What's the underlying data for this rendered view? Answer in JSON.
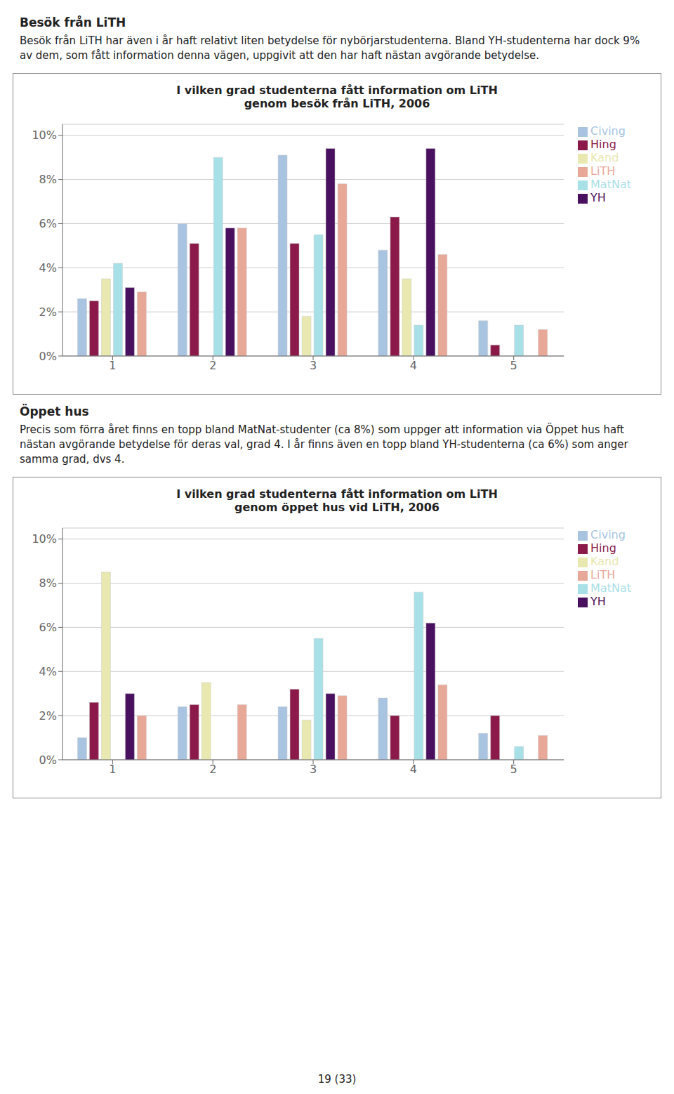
{
  "chart_data": [
    {
      "type": "bar",
      "title": "I vilken grad studenterna fått information om LiTH\ngenom besök från LiTH, 2006",
      "annotations": [
        "Besök från LiTH",
        "Besök från LiTH har även i år haft relativt liten betydelse för nybörjarstudenterna. Bland YH-studenterna har dock 9% av dem, som fått information denna vägen, uppgivit att den har haft nästan avgörande betydelse."
      ],
      "categories": [
        "1",
        "2",
        "3",
        "4",
        "5"
      ],
      "series": [
        {
          "name": "Civing",
          "color": "#a8c4e0",
          "values": [
            2.6,
            6.0,
            9.1,
            4.8,
            1.6
          ]
        },
        {
          "name": "Hing",
          "color": "#8b1a4a",
          "values": [
            2.5,
            5.1,
            5.1,
            6.3,
            0.5
          ]
        },
        {
          "name": "Kand",
          "color": "#e8e8b0",
          "values": [
            3.5,
            0.0,
            1.8,
            3.5,
            0.0
          ]
        },
        {
          "name": "MatNat",
          "color": "#a8e0e8",
          "values": [
            4.2,
            9.0,
            5.5,
            1.4,
            1.4
          ]
        },
        {
          "name": "YH",
          "color": "#4a1060",
          "values": [
            3.1,
            5.8,
            9.4,
            9.4,
            0.0
          ]
        },
        {
          "name": "LiTH",
          "color": "#e8a898",
          "values": [
            2.9,
            5.8,
            7.8,
            4.6,
            1.2
          ]
        }
      ],
      "ylim": [
        0,
        10.5
      ],
      "yticks": [
        {
          "value": 0,
          "label": "0%"
        },
        {
          "value": 2,
          "label": "2%"
        },
        {
          "value": 4,
          "label": "4%"
        },
        {
          "value": 6,
          "label": "6%"
        },
        {
          "value": 8,
          "label": "8%"
        },
        {
          "value": 10,
          "label": "10%"
        }
      ],
      "grid": true,
      "legend": "upper right"
    },
    {
      "type": "bar",
      "title": "I vilken grad studenterna fått information om LiTH\ngenom öppet hus vid LiTH, 2006",
      "annotations": [
        "Öppet hus",
        "Precis som förra året finns en topp bland MatNat-studenter (ca 8%) som uppger att information via Öppet hus haft nästan avgörande betydelse för deras val, grad 4. I år finns även en topp bland YH-studenterna (ca 6%) som anger samma grad, dvs 4.",
        "19 (33)"
      ],
      "categories": [
        "1",
        "2",
        "3",
        "4",
        "5"
      ],
      "series": [
        {
          "name": "Civing",
          "color": "#a8c4e0",
          "values": [
            1.0,
            2.4,
            2.4,
            2.8,
            1.2
          ]
        },
        {
          "name": "Hing",
          "color": "#8b1a4a",
          "values": [
            2.6,
            2.5,
            3.2,
            2.0,
            2.0
          ]
        },
        {
          "name": "Kand",
          "color": "#e8e8b0",
          "values": [
            8.5,
            3.5,
            1.8,
            0.0,
            0.0
          ]
        },
        {
          "name": "MatNat",
          "color": "#a8e0e8",
          "values": [
            0.0,
            0.0,
            5.5,
            7.6,
            0.6
          ]
        },
        {
          "name": "YH",
          "color": "#4a1060",
          "values": [
            3.0,
            0.0,
            3.0,
            6.2,
            0.0
          ]
        },
        {
          "name": "LiTH",
          "color": "#e8a898",
          "values": [
            2.0,
            2.5,
            2.9,
            3.4,
            1.1
          ]
        }
      ],
      "ylim": [
        0,
        10.5
      ],
      "yticks": [
        {
          "value": 0,
          "label": "0%"
        },
        {
          "value": 2,
          "label": "2%"
        },
        {
          "value": 4,
          "label": "4%"
        },
        {
          "value": 6,
          "label": "6%"
        },
        {
          "value": 8,
          "label": "8%"
        },
        {
          "value": 10,
          "label": "10%"
        }
      ],
      "grid": true,
      "legend": "upper right"
    }
  ]
}
